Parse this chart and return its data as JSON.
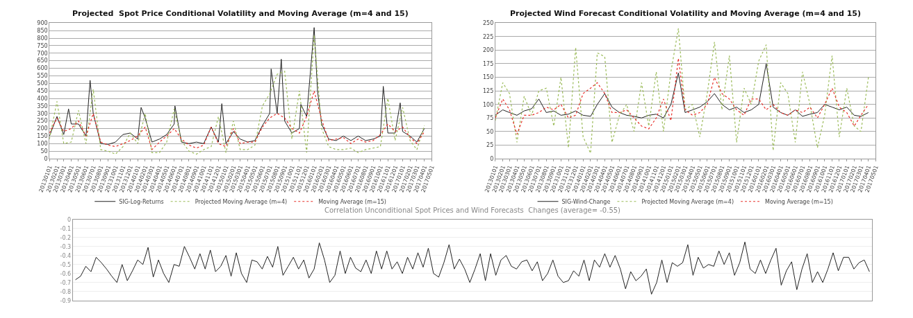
{
  "chart_data": [
    {
      "type": "line",
      "title": "Projected  Spot Price Conditional Volatility and Moving Average (m=4 and 15)",
      "grid": "y",
      "legend": "bottom",
      "marker": "none",
      "x": [
        "2013-01-01",
        "2013-02-01",
        "2013-03-01",
        "2013-04-01",
        "2013-05-01",
        "2013-06-01",
        "2013-07-01",
        "2013-08-01",
        "2013-09-01",
        "2013-10-01",
        "2013-11-01",
        "2013-12-01",
        "2014-01-01",
        "2014-02-01",
        "2014-03-01",
        "2014-04-01",
        "2014-05-01",
        "2014-06-01",
        "2014-07-01",
        "2014-08-01",
        "2014-09-01",
        "2014-10-01",
        "2014-11-01",
        "2014-12-01",
        "2015-01-01",
        "2015-02-01",
        "2015-03-01",
        "2015-04-01",
        "2015-05-01",
        "2015-06-01",
        "2015-07-01",
        "2015-08-01",
        "2015-09-01",
        "2015-10-01",
        "2015-11-01",
        "2015-12-01",
        "2016-01-01",
        "2016-02-01",
        "2016-03-01",
        "2016-04-01",
        "2016-05-01",
        "2016-06-01",
        "2016-07-01",
        "2016-08-01",
        "2016-09-01",
        "2016-10-01",
        "2016-11-01",
        "2016-12-01",
        "2017-01-01",
        "2017-02-01",
        "2017-03-01",
        "2017-04-01"
      ],
      "xlim": [
        "2013-01-01",
        "2017-05-01"
      ],
      "xticks": [
        {
          "value": "2013-01-01",
          "label": "20130101"
        },
        {
          "value": "2013-02-01",
          "label": "20130201"
        },
        {
          "value": "2013-03-01",
          "label": "20130301"
        },
        {
          "value": "2013-04-01",
          "label": "20130401"
        },
        {
          "value": "2013-05-01",
          "label": "20130501"
        },
        {
          "value": "2013-06-01",
          "label": "20130601"
        },
        {
          "value": "2013-07-01",
          "label": "20130701"
        },
        {
          "value": "2013-08-01",
          "label": "20130801"
        },
        {
          "value": "2013-09-01",
          "label": "20130901"
        },
        {
          "value": "2013-10-01",
          "label": "20131001"
        },
        {
          "value": "2013-11-01",
          "label": "20131101"
        },
        {
          "value": "2013-12-01",
          "label": "20131201"
        },
        {
          "value": "2014-01-01",
          "label": "20140101"
        },
        {
          "value": "2014-02-01",
          "label": "20140201"
        },
        {
          "value": "2014-03-01",
          "label": "20140301"
        },
        {
          "value": "2014-04-01",
          "label": "20140401"
        },
        {
          "value": "2014-05-01",
          "label": "20140501"
        },
        {
          "value": "2014-06-01",
          "label": "20140601"
        },
        {
          "value": "2014-07-01",
          "label": "20140701"
        },
        {
          "value": "2014-08-01",
          "label": "20140801"
        },
        {
          "value": "2014-09-01",
          "label": "20140901"
        },
        {
          "value": "2014-10-01",
          "label": "20141001"
        },
        {
          "value": "2014-11-01",
          "label": "20141101"
        },
        {
          "value": "2014-12-01",
          "label": "20141201"
        },
        {
          "value": "2015-01-01",
          "label": "20150101"
        },
        {
          "value": "2015-02-01",
          "label": "20150201"
        },
        {
          "value": "2015-03-01",
          "label": "20150301"
        },
        {
          "value": "2015-04-01",
          "label": "20150401"
        },
        {
          "value": "2015-05-01",
          "label": "20150501"
        },
        {
          "value": "2015-06-01",
          "label": "20150601"
        },
        {
          "value": "2015-07-01",
          "label": "20150701"
        },
        {
          "value": "2015-08-01",
          "label": "20150801"
        },
        {
          "value": "2015-09-01",
          "label": "20150901"
        },
        {
          "value": "2015-10-01",
          "label": "20151001"
        },
        {
          "value": "2015-11-01",
          "label": "20151101"
        },
        {
          "value": "2015-12-01",
          "label": "20151201"
        },
        {
          "value": "2016-01-01",
          "label": "20160101"
        },
        {
          "value": "2016-02-01",
          "label": "20160201"
        },
        {
          "value": "2016-03-01",
          "label": "20160301"
        },
        {
          "value": "2016-04-01",
          "label": "20160401"
        },
        {
          "value": "2016-05-01",
          "label": "20160501"
        },
        {
          "value": "2016-06-01",
          "label": "20160601"
        },
        {
          "value": "2016-07-01",
          "label": "20160701"
        },
        {
          "value": "2016-08-01",
          "label": "20160801"
        },
        {
          "value": "2016-09-01",
          "label": "20160901"
        },
        {
          "value": "2016-10-01",
          "label": "20161001"
        },
        {
          "value": "2016-11-01",
          "label": "20161101"
        },
        {
          "value": "2016-12-01",
          "label": "20161201"
        },
        {
          "value": "2017-01-01",
          "label": "20170101"
        },
        {
          "value": "2017-02-01",
          "label": "20170201"
        },
        {
          "value": "2017-03-01",
          "label": "20170301"
        },
        {
          "value": "2017-04-01",
          "label": "20170401"
        },
        {
          "value": "2017-05-01",
          "label": "20170501"
        }
      ],
      "ylim": [
        0,
        900
      ],
      "yticks": [
        0,
        50,
        100,
        150,
        200,
        250,
        300,
        350,
        400,
        450,
        500,
        550,
        600,
        650,
        700,
        750,
        800,
        850,
        900
      ],
      "series": [
        {
          "name": "SIG-Log-Returns",
          "color": "#222222",
          "line_style": "solid",
          "x": [
            "2013-01-01",
            "2013-02-01",
            "2013-03-01",
            "2013-03-21",
            "2013-04-01",
            "2013-05-01",
            "2013-06-01",
            "2013-06-18",
            "2013-07-01",
            "2013-08-01",
            "2013-09-01",
            "2013-10-01",
            "2013-11-01",
            "2013-12-01",
            "2014-01-01",
            "2014-01-15",
            "2014-02-01",
            "2014-03-01",
            "2014-04-01",
            "2014-05-01",
            "2014-06-01",
            "2014-06-04",
            "2014-07-01",
            "2014-08-01",
            "2014-09-01",
            "2014-10-01",
            "2014-11-01",
            "2014-12-01",
            "2014-12-15",
            "2015-01-01",
            "2015-02-01",
            "2015-03-01",
            "2015-04-01",
            "2015-05-01",
            "2015-06-01",
            "2015-07-01",
            "2015-07-07",
            "2015-08-01",
            "2015-08-18",
            "2015-09-01",
            "2015-10-01",
            "2015-11-01",
            "2015-11-07",
            "2015-12-01",
            "2016-01-01",
            "2016-01-15",
            "2016-02-01",
            "2016-03-01",
            "2016-04-01",
            "2016-05-01",
            "2016-06-01",
            "2016-07-01",
            "2016-08-01",
            "2016-09-01",
            "2016-10-01",
            "2016-10-13",
            "2016-11-01",
            "2016-12-01",
            "2016-12-22",
            "2017-01-01",
            "2017-02-01",
            "2017-03-01",
            "2017-04-01"
          ],
          "values": [
            150,
            280,
            160,
            330,
            230,
            230,
            150,
            520,
            300,
            100,
            95,
            110,
            160,
            170,
            130,
            340,
            270,
            110,
            130,
            160,
            230,
            350,
            110,
            100,
            110,
            100,
            210,
            110,
            365,
            100,
            180,
            130,
            110,
            120,
            220,
            300,
            595,
            300,
            660,
            250,
            170,
            200,
            360,
            280,
            870,
            450,
            230,
            130,
            120,
            150,
            120,
            150,
            120,
            130,
            150,
            480,
            170,
            170,
            370,
            180,
            150,
            110,
            200
          ]
        },
        {
          "name": "Projected Moving Average (m=4)",
          "color": "#9bbb59",
          "line_style": "dotted",
          "values": [
            130,
            380,
            100,
            110,
            320,
            100,
            460,
            60,
            50,
            30,
            80,
            170,
            100,
            300,
            40,
            40,
            110,
            330,
            120,
            50,
            30,
            60,
            80,
            280,
            40,
            250,
            60,
            60,
            90,
            350,
            430,
            560,
            580,
            130,
            450,
            40,
            820,
            200,
            80,
            60,
            60,
            70,
            40,
            60,
            70,
            80,
            400,
            120,
            340,
            120,
            60,
            220
          ]
        },
        {
          "name": "Moving Average (m=15)",
          "color": "#e8302a",
          "line_style": "dotted",
          "values": [
            170,
            270,
            180,
            200,
            250,
            150,
            300,
            110,
            90,
            80,
            100,
            120,
            150,
            210,
            60,
            110,
            150,
            200,
            130,
            90,
            70,
            90,
            210,
            100,
            80,
            200,
            100,
            110,
            110,
            210,
            270,
            300,
            270,
            200,
            170,
            280,
            450,
            260,
            120,
            130,
            140,
            100,
            130,
            110,
            120,
            160,
            230,
            180,
            210,
            140,
            100,
            180
          ]
        }
      ]
    },
    {
      "type": "line",
      "title": "Projected Wind Forecast Conditional Volatility and Moving Average (m=4 and 15)",
      "grid": "y",
      "legend": "bottom",
      "marker": "none",
      "x": [
        "2013-01-01",
        "2013-02-01",
        "2013-03-01",
        "2013-04-01",
        "2013-05-01",
        "2013-06-01",
        "2013-07-01",
        "2013-08-01",
        "2013-09-01",
        "2013-10-01",
        "2013-11-01",
        "2013-12-01",
        "2014-01-01",
        "2014-02-01",
        "2014-03-01",
        "2014-04-01",
        "2014-05-01",
        "2014-06-01",
        "2014-07-01",
        "2014-08-01",
        "2014-09-01",
        "2014-10-01",
        "2014-11-01",
        "2014-12-01",
        "2015-01-01",
        "2015-02-01",
        "2015-03-01",
        "2015-04-01",
        "2015-05-01",
        "2015-06-01",
        "2015-07-01",
        "2015-08-01",
        "2015-09-01",
        "2015-10-01",
        "2015-11-01",
        "2015-12-01",
        "2016-01-01",
        "2016-02-01",
        "2016-03-01",
        "2016-04-01",
        "2016-05-01",
        "2016-06-01",
        "2016-07-01",
        "2016-08-01",
        "2016-09-01",
        "2016-10-01",
        "2016-11-01",
        "2016-12-01",
        "2017-01-01",
        "2017-02-01",
        "2017-03-01",
        "2017-04-01"
      ],
      "xlim": [
        "2013-01-01",
        "2017-05-01"
      ],
      "xticks": [
        {
          "value": "2013-01-01",
          "label": "20130101"
        },
        {
          "value": "2013-02-01",
          "label": "20130201"
        },
        {
          "value": "2013-03-01",
          "label": "20130301"
        },
        {
          "value": "2013-04-01",
          "label": "20130401"
        },
        {
          "value": "2013-05-01",
          "label": "20130501"
        },
        {
          "value": "2013-06-01",
          "label": "20130601"
        },
        {
          "value": "2013-07-01",
          "label": "20130701"
        },
        {
          "value": "2013-08-01",
          "label": "20130801"
        },
        {
          "value": "2013-09-01",
          "label": "20130901"
        },
        {
          "value": "2013-10-01",
          "label": "20131001"
        },
        {
          "value": "2013-11-01",
          "label": "20131101"
        },
        {
          "value": "2013-12-01",
          "label": "20131201"
        },
        {
          "value": "2014-01-01",
          "label": "20140101"
        },
        {
          "value": "2014-02-01",
          "label": "20140201"
        },
        {
          "value": "2014-03-01",
          "label": "20140301"
        },
        {
          "value": "2014-04-01",
          "label": "20140401"
        },
        {
          "value": "2014-05-01",
          "label": "20140501"
        },
        {
          "value": "2014-06-01",
          "label": "20140601"
        },
        {
          "value": "2014-07-01",
          "label": "20140701"
        },
        {
          "value": "2014-08-01",
          "label": "20140801"
        },
        {
          "value": "2014-09-01",
          "label": "20140901"
        },
        {
          "value": "2014-10-01",
          "label": "20141001"
        },
        {
          "value": "2014-11-01",
          "label": "20141101"
        },
        {
          "value": "2014-12-01",
          "label": "20141201"
        },
        {
          "value": "2015-01-01",
          "label": "20150101"
        },
        {
          "value": "2015-02-01",
          "label": "20150201"
        },
        {
          "value": "2015-03-01",
          "label": "20150301"
        },
        {
          "value": "2015-04-01",
          "label": "20150401"
        },
        {
          "value": "2015-05-01",
          "label": "20150501"
        },
        {
          "value": "2015-06-01",
          "label": "20150601"
        },
        {
          "value": "2015-07-01",
          "label": "20150701"
        },
        {
          "value": "2015-08-01",
          "label": "20150801"
        },
        {
          "value": "2015-09-01",
          "label": "20150901"
        },
        {
          "value": "2015-10-01",
          "label": "20151001"
        },
        {
          "value": "2015-11-01",
          "label": "20151101"
        },
        {
          "value": "2015-12-01",
          "label": "20151201"
        },
        {
          "value": "2016-01-01",
          "label": "20160101"
        },
        {
          "value": "2016-02-01",
          "label": "20160201"
        },
        {
          "value": "2016-03-01",
          "label": "20160301"
        },
        {
          "value": "2016-04-01",
          "label": "20160401"
        },
        {
          "value": "2016-05-01",
          "label": "20160501"
        },
        {
          "value": "2016-06-01",
          "label": "20160601"
        },
        {
          "value": "2016-07-01",
          "label": "20160701"
        },
        {
          "value": "2016-08-01",
          "label": "20160801"
        },
        {
          "value": "2016-09-01",
          "label": "20160901"
        },
        {
          "value": "2016-10-01",
          "label": "20161001"
        },
        {
          "value": "2016-11-01",
          "label": "20161101"
        },
        {
          "value": "2016-12-01",
          "label": "20161201"
        },
        {
          "value": "2017-01-01",
          "label": "20170101"
        },
        {
          "value": "2017-02-01",
          "label": "20170201"
        },
        {
          "value": "2017-03-01",
          "label": "20170301"
        },
        {
          "value": "2017-04-01",
          "label": "20170401"
        },
        {
          "value": "2017-05-01",
          "label": "20170501"
        }
      ],
      "ylim": [
        0,
        250
      ],
      "yticks": [
        0,
        25,
        50,
        75,
        100,
        125,
        150,
        175,
        200,
        225,
        250
      ],
      "series": [
        {
          "name": "SIG-Wind-Change",
          "color": "#222222",
          "line_style": "solid",
          "values": [
            80,
            90,
            85,
            80,
            88,
            92,
            110,
            85,
            88,
            80,
            82,
            88,
            80,
            78,
            100,
            120,
            95,
            85,
            80,
            78,
            75,
            80,
            82,
            75,
            100,
            158,
            85,
            90,
            95,
            105,
            120,
            100,
            90,
            95,
            85,
            90,
            100,
            175,
            95,
            85,
            80,
            90,
            78,
            82,
            85,
            100,
            95,
            90,
            95,
            80,
            78,
            85
          ]
        },
        {
          "name": "Projected Moving Average (m=4)",
          "color": "#9bbb59",
          "line_style": "dotted",
          "values": [
            70,
            140,
            120,
            30,
            115,
            80,
            125,
            130,
            60,
            150,
            20,
            205,
            40,
            10,
            195,
            188,
            30,
            80,
            100,
            50,
            140,
            60,
            160,
            50,
            160,
            240,
            90,
            100,
            40,
            120,
            215,
            90,
            190,
            30,
            130,
            100,
            180,
            210,
            15,
            140,
            120,
            30,
            160,
            100,
            20,
            80,
            190,
            40,
            130,
            60,
            50,
            150
          ]
        },
        {
          "name": "Moving Average (m=15)",
          "color": "#e8302a",
          "line_style": "dotted",
          "values": [
            75,
            110,
            90,
            45,
            80,
            80,
            85,
            95,
            90,
            100,
            75,
            80,
            120,
            130,
            140,
            120,
            85,
            85,
            90,
            75,
            60,
            55,
            75,
            110,
            70,
            185,
            90,
            80,
            85,
            100,
            150,
            120,
            110,
            90,
            80,
            110,
            110,
            90,
            100,
            85,
            80,
            90,
            85,
            95,
            75,
            100,
            130,
            95,
            85,
            60,
            80,
            100
          ]
        }
      ]
    },
    {
      "type": "line",
      "title": "Correlation Unconditional Spot Prices and Wind Forecasts  Changes (average= -0.55)",
      "grid": "y",
      "tick_labels": "y",
      "marker": "none",
      "line_style": "solid",
      "color": "#222222",
      "categories": [
        null,
        null,
        null,
        null,
        null,
        null,
        null,
        null,
        null,
        null,
        null,
        null,
        null,
        null,
        null,
        null,
        null,
        null,
        null,
        null,
        null,
        null,
        null,
        null,
        null,
        null,
        null,
        null,
        null,
        null,
        null,
        null,
        null,
        null,
        null,
        null,
        null,
        null,
        null,
        null,
        null,
        null,
        null,
        null,
        null,
        null,
        null,
        null,
        null,
        null,
        null,
        null,
        null,
        null,
        null,
        null,
        null,
        null,
        null,
        null,
        null,
        null,
        null,
        null,
        null,
        null,
        null,
        null,
        null,
        null,
        null,
        null,
        null,
        null,
        null,
        null,
        null,
        null,
        null,
        null,
        null,
        null,
        null,
        null,
        null,
        null,
        null,
        null,
        null,
        null,
        null,
        null,
        null,
        null,
        null,
        null,
        null,
        null,
        null,
        null,
        null,
        null,
        null,
        null,
        null,
        null,
        null,
        null,
        null,
        null,
        null,
        null,
        null,
        null,
        null,
        null,
        null,
        null,
        null,
        null,
        null,
        null,
        null,
        null,
        null,
        null,
        null,
        null,
        null,
        null,
        null,
        null,
        null,
        null,
        null,
        null,
        null,
        null,
        null,
        null,
        null,
        null,
        null,
        null,
        null,
        null,
        null,
        null,
        null,
        null,
        null,
        null,
        null,
        null
      ],
      "ylim": [
        -0.9,
        0
      ],
      "yticks": [
        -0.9,
        -0.8,
        -0.7,
        -0.6,
        -0.5,
        -0.4,
        -0.3,
        -0.2,
        -0.1,
        0
      ],
      "values": [
        -0.67,
        -0.63,
        -0.52,
        -0.58,
        -0.42,
        -0.48,
        -0.55,
        -0.63,
        -0.7,
        -0.5,
        -0.68,
        -0.57,
        -0.45,
        -0.5,
        -0.31,
        -0.64,
        -0.45,
        -0.6,
        -0.7,
        -0.5,
        -0.52,
        -0.3,
        -0.42,
        -0.55,
        -0.38,
        -0.55,
        -0.34,
        -0.58,
        -0.52,
        -0.4,
        -0.63,
        -0.37,
        -0.6,
        -0.7,
        -0.45,
        -0.47,
        -0.55,
        -0.41,
        -0.53,
        -0.3,
        -0.62,
        -0.52,
        -0.42,
        -0.55,
        -0.45,
        -0.65,
        -0.55,
        -0.26,
        -0.45,
        -0.7,
        -0.62,
        -0.35,
        -0.6,
        -0.42,
        -0.54,
        -0.58,
        -0.45,
        -0.6,
        -0.35,
        -0.55,
        -0.35,
        -0.55,
        -0.47,
        -0.6,
        -0.42,
        -0.55,
        -0.37,
        -0.53,
        -0.32,
        -0.6,
        -0.64,
        -0.48,
        -0.28,
        -0.55,
        -0.44,
        -0.55,
        -0.7,
        -0.55,
        -0.38,
        -0.68,
        -0.38,
        -0.62,
        -0.45,
        -0.4,
        -0.52,
        -0.55,
        -0.47,
        -0.45,
        -0.57,
        -0.47,
        -0.68,
        -0.6,
        -0.45,
        -0.63,
        -0.7,
        -0.68,
        -0.57,
        -0.63,
        -0.45,
        -0.68,
        -0.45,
        -0.53,
        -0.38,
        -0.53,
        -0.4,
        -0.55,
        -0.77,
        -0.58,
        -0.68,
        -0.63,
        -0.55,
        -0.83,
        -0.7,
        -0.45,
        -0.7,
        -0.48,
        -0.52,
        -0.48,
        -0.28,
        -0.62,
        -0.42,
        -0.54,
        -0.5,
        -0.52,
        -0.35,
        -0.5,
        -0.37,
        -0.62,
        -0.48,
        -0.25,
        -0.55,
        -0.6,
        -0.45,
        -0.6,
        -0.45,
        -0.32,
        -0.73,
        -0.57,
        -0.47,
        -0.78,
        -0.55,
        -0.38,
        -0.7,
        -0.58,
        -0.7,
        -0.55,
        -0.37,
        -0.57,
        -0.42,
        -0.42,
        -0.55,
        -0.48,
        -0.45,
        -0.58
      ]
    }
  ]
}
